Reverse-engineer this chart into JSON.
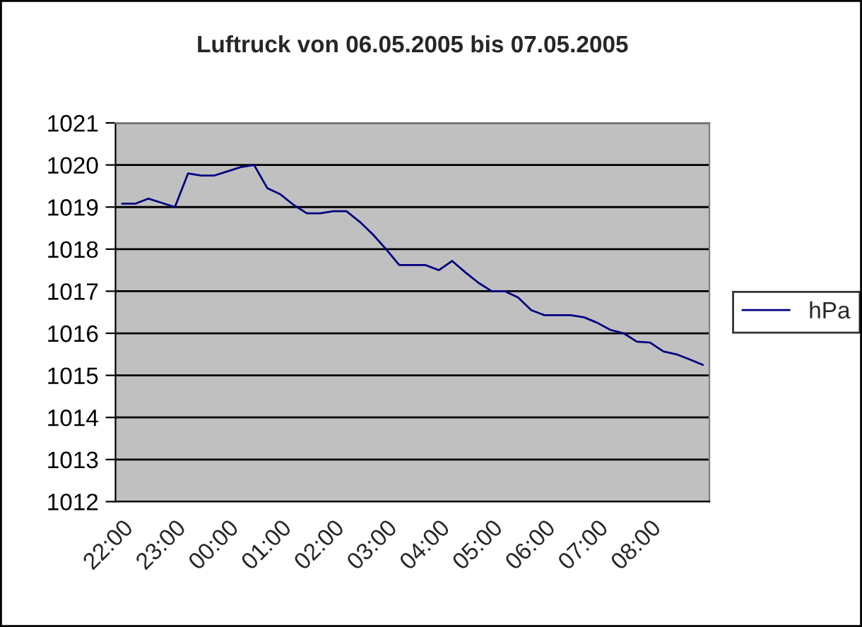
{
  "chart_data": {
    "type": "line",
    "title": "Luftruck von 06.05.2005 bis 07.05.2005",
    "categories": [
      "22:00",
      null,
      null,
      null,
      "23:00",
      null,
      null,
      null,
      "00:00",
      null,
      null,
      null,
      "01:00",
      null,
      null,
      null,
      "02:00",
      null,
      null,
      null,
      "03:00",
      null,
      null,
      null,
      "04:00",
      null,
      null,
      null,
      "05:00",
      null,
      null,
      null,
      "06:00",
      null,
      null,
      null,
      "07:00",
      null,
      null,
      null,
      "08:00",
      null,
      null,
      null,
      null
    ],
    "series": [
      {
        "name": "hPa",
        "color": "#000080",
        "values": [
          1019.08,
          1019.08,
          1019.2,
          1019.1,
          1019.0,
          1019.8,
          1019.75,
          1019.75,
          1019.85,
          1019.95,
          1020.0,
          1019.45,
          1019.3,
          1019.05,
          1018.85,
          1018.85,
          1018.9,
          1018.9,
          1018.65,
          1018.35,
          1018.0,
          1017.62,
          1017.62,
          1017.62,
          1017.5,
          1017.72,
          1017.45,
          1017.2,
          1017.0,
          1017.0,
          1016.85,
          1016.55,
          1016.43,
          1016.43,
          1016.43,
          1016.38,
          1016.25,
          1016.08,
          1016.0,
          1015.8,
          1015.78,
          1015.57,
          1015.5,
          1015.38,
          1015.25
        ]
      }
    ],
    "ylim": [
      1012,
      1021
    ],
    "yticks": [
      1012,
      1013,
      1014,
      1015,
      1016,
      1017,
      1018,
      1019,
      1020,
      1021
    ],
    "grid": "y",
    "legend": "right",
    "marker": "none",
    "line_style": "solid"
  }
}
